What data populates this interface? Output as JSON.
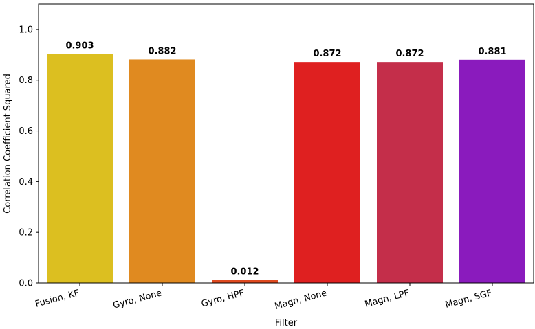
{
  "chart_data": {
    "type": "bar",
    "categories": [
      "Fusion, KF",
      "Gyro, None",
      "Gyro, HPF",
      "Magn, None",
      "Magn, LPF",
      "Magn, SGF"
    ],
    "values": [
      0.903,
      0.882,
      0.012,
      0.872,
      0.872,
      0.881
    ],
    "value_labels": [
      "0.903",
      "0.882",
      "0.012",
      "0.872",
      "0.872",
      "0.881"
    ],
    "colors": [
      "#dcbf20",
      "#e08a20",
      "#df4a20",
      "#df2020",
      "#c42e4a",
      "#8a1bbd"
    ],
    "xlabel": "Filter",
    "ylabel": "Correlation Coefficient Squared",
    "ylim": [
      0,
      1.1
    ],
    "yticks": [
      0.0,
      0.2,
      0.4,
      0.6,
      0.8,
      1.0
    ],
    "ytick_labels": [
      "0.0",
      "0.2",
      "0.4",
      "0.6",
      "0.8",
      "1.0"
    ],
    "grid": false,
    "legend": "none"
  }
}
